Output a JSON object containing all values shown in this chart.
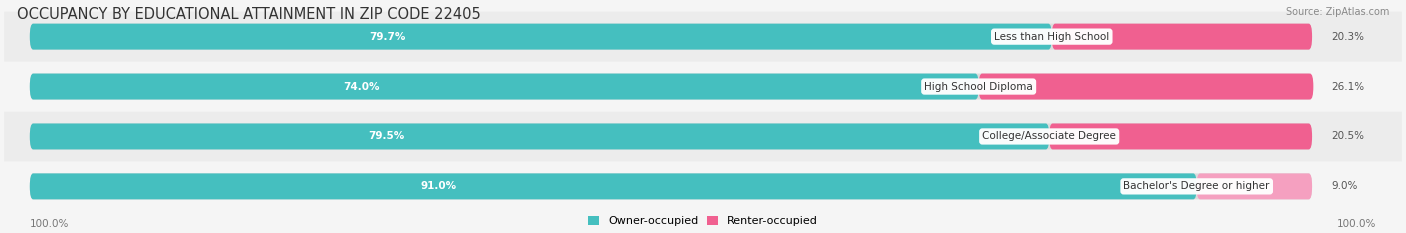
{
  "title": "OCCUPANCY BY EDUCATIONAL ATTAINMENT IN ZIP CODE 22405",
  "source": "Source: ZipAtlas.com",
  "categories": [
    "Less than High School",
    "High School Diploma",
    "College/Associate Degree",
    "Bachelor's Degree or higher"
  ],
  "owner_values": [
    79.7,
    74.0,
    79.5,
    91.0
  ],
  "renter_values": [
    20.3,
    26.1,
    20.5,
    9.0
  ],
  "owner_color": "#45BFBF",
  "renter_color_rows": [
    "#F06090",
    "#F06090",
    "#F06090",
    "#F5A0C0"
  ],
  "owner_label": "Owner-occupied",
  "renter_label": "Renter-occupied",
  "bar_height": 0.52,
  "background_colors": [
    "#ececec",
    "#f5f5f5",
    "#ececec",
    "#f5f5f5"
  ],
  "axis_label_left": "100.0%",
  "axis_label_right": "100.0%",
  "title_fontsize": 10.5,
  "label_fontsize": 7.5,
  "value_fontsize": 7.5,
  "fig_bg": "#f5f5f5"
}
